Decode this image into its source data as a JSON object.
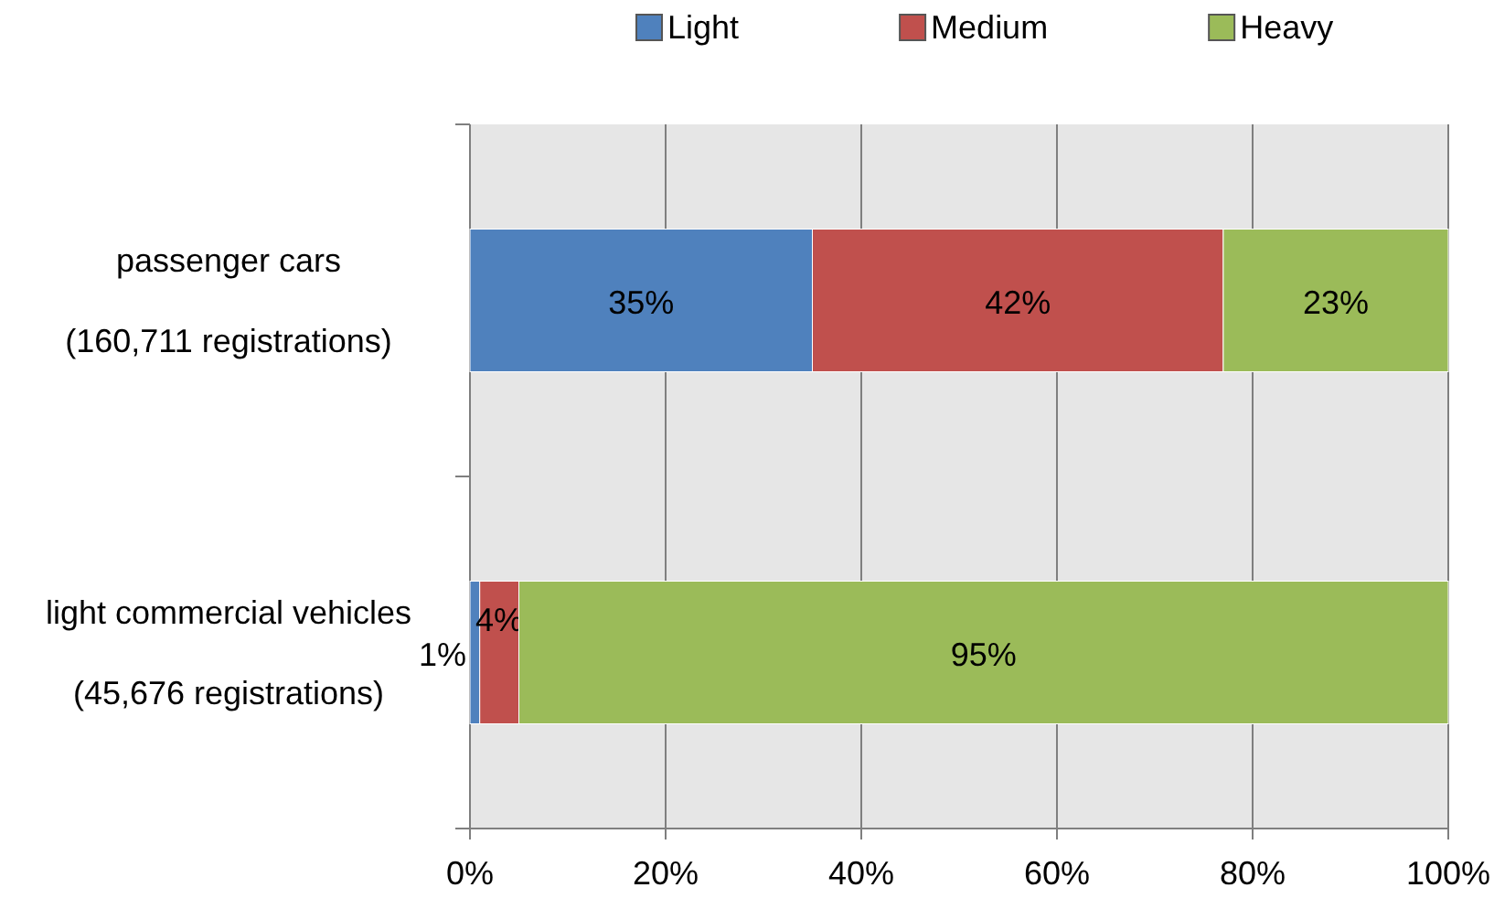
{
  "chart_data": {
    "type": "bar",
    "orientation": "horizontal",
    "stacked": true,
    "categories": [
      "passenger cars\n(160,711 registrations)",
      "light commercial vehicles\n(45,676 registrations)"
    ],
    "series": [
      {
        "name": "Light",
        "color": "#4f81bd",
        "values": [
          35,
          1
        ],
        "value_labels": [
          "35%",
          "1%"
        ]
      },
      {
        "name": "Medium",
        "color": "#c0504d",
        "values": [
          42,
          4
        ],
        "value_labels": [
          "42%",
          "4%"
        ]
      },
      {
        "name": "Heavy",
        "color": "#9bbb59",
        "values": [
          23,
          95
        ],
        "value_labels": [
          "23%",
          "95%"
        ]
      }
    ],
    "xlim": [
      0,
      100
    ],
    "xticks": [
      {
        "value": 0,
        "label": "0%"
      },
      {
        "value": 20,
        "label": "20%"
      },
      {
        "value": 40,
        "label": "40%"
      },
      {
        "value": 60,
        "label": "60%"
      },
      {
        "value": 80,
        "label": "80%"
      },
      {
        "value": 100,
        "label": "100%"
      }
    ],
    "grid": "x",
    "legend": "top"
  }
}
